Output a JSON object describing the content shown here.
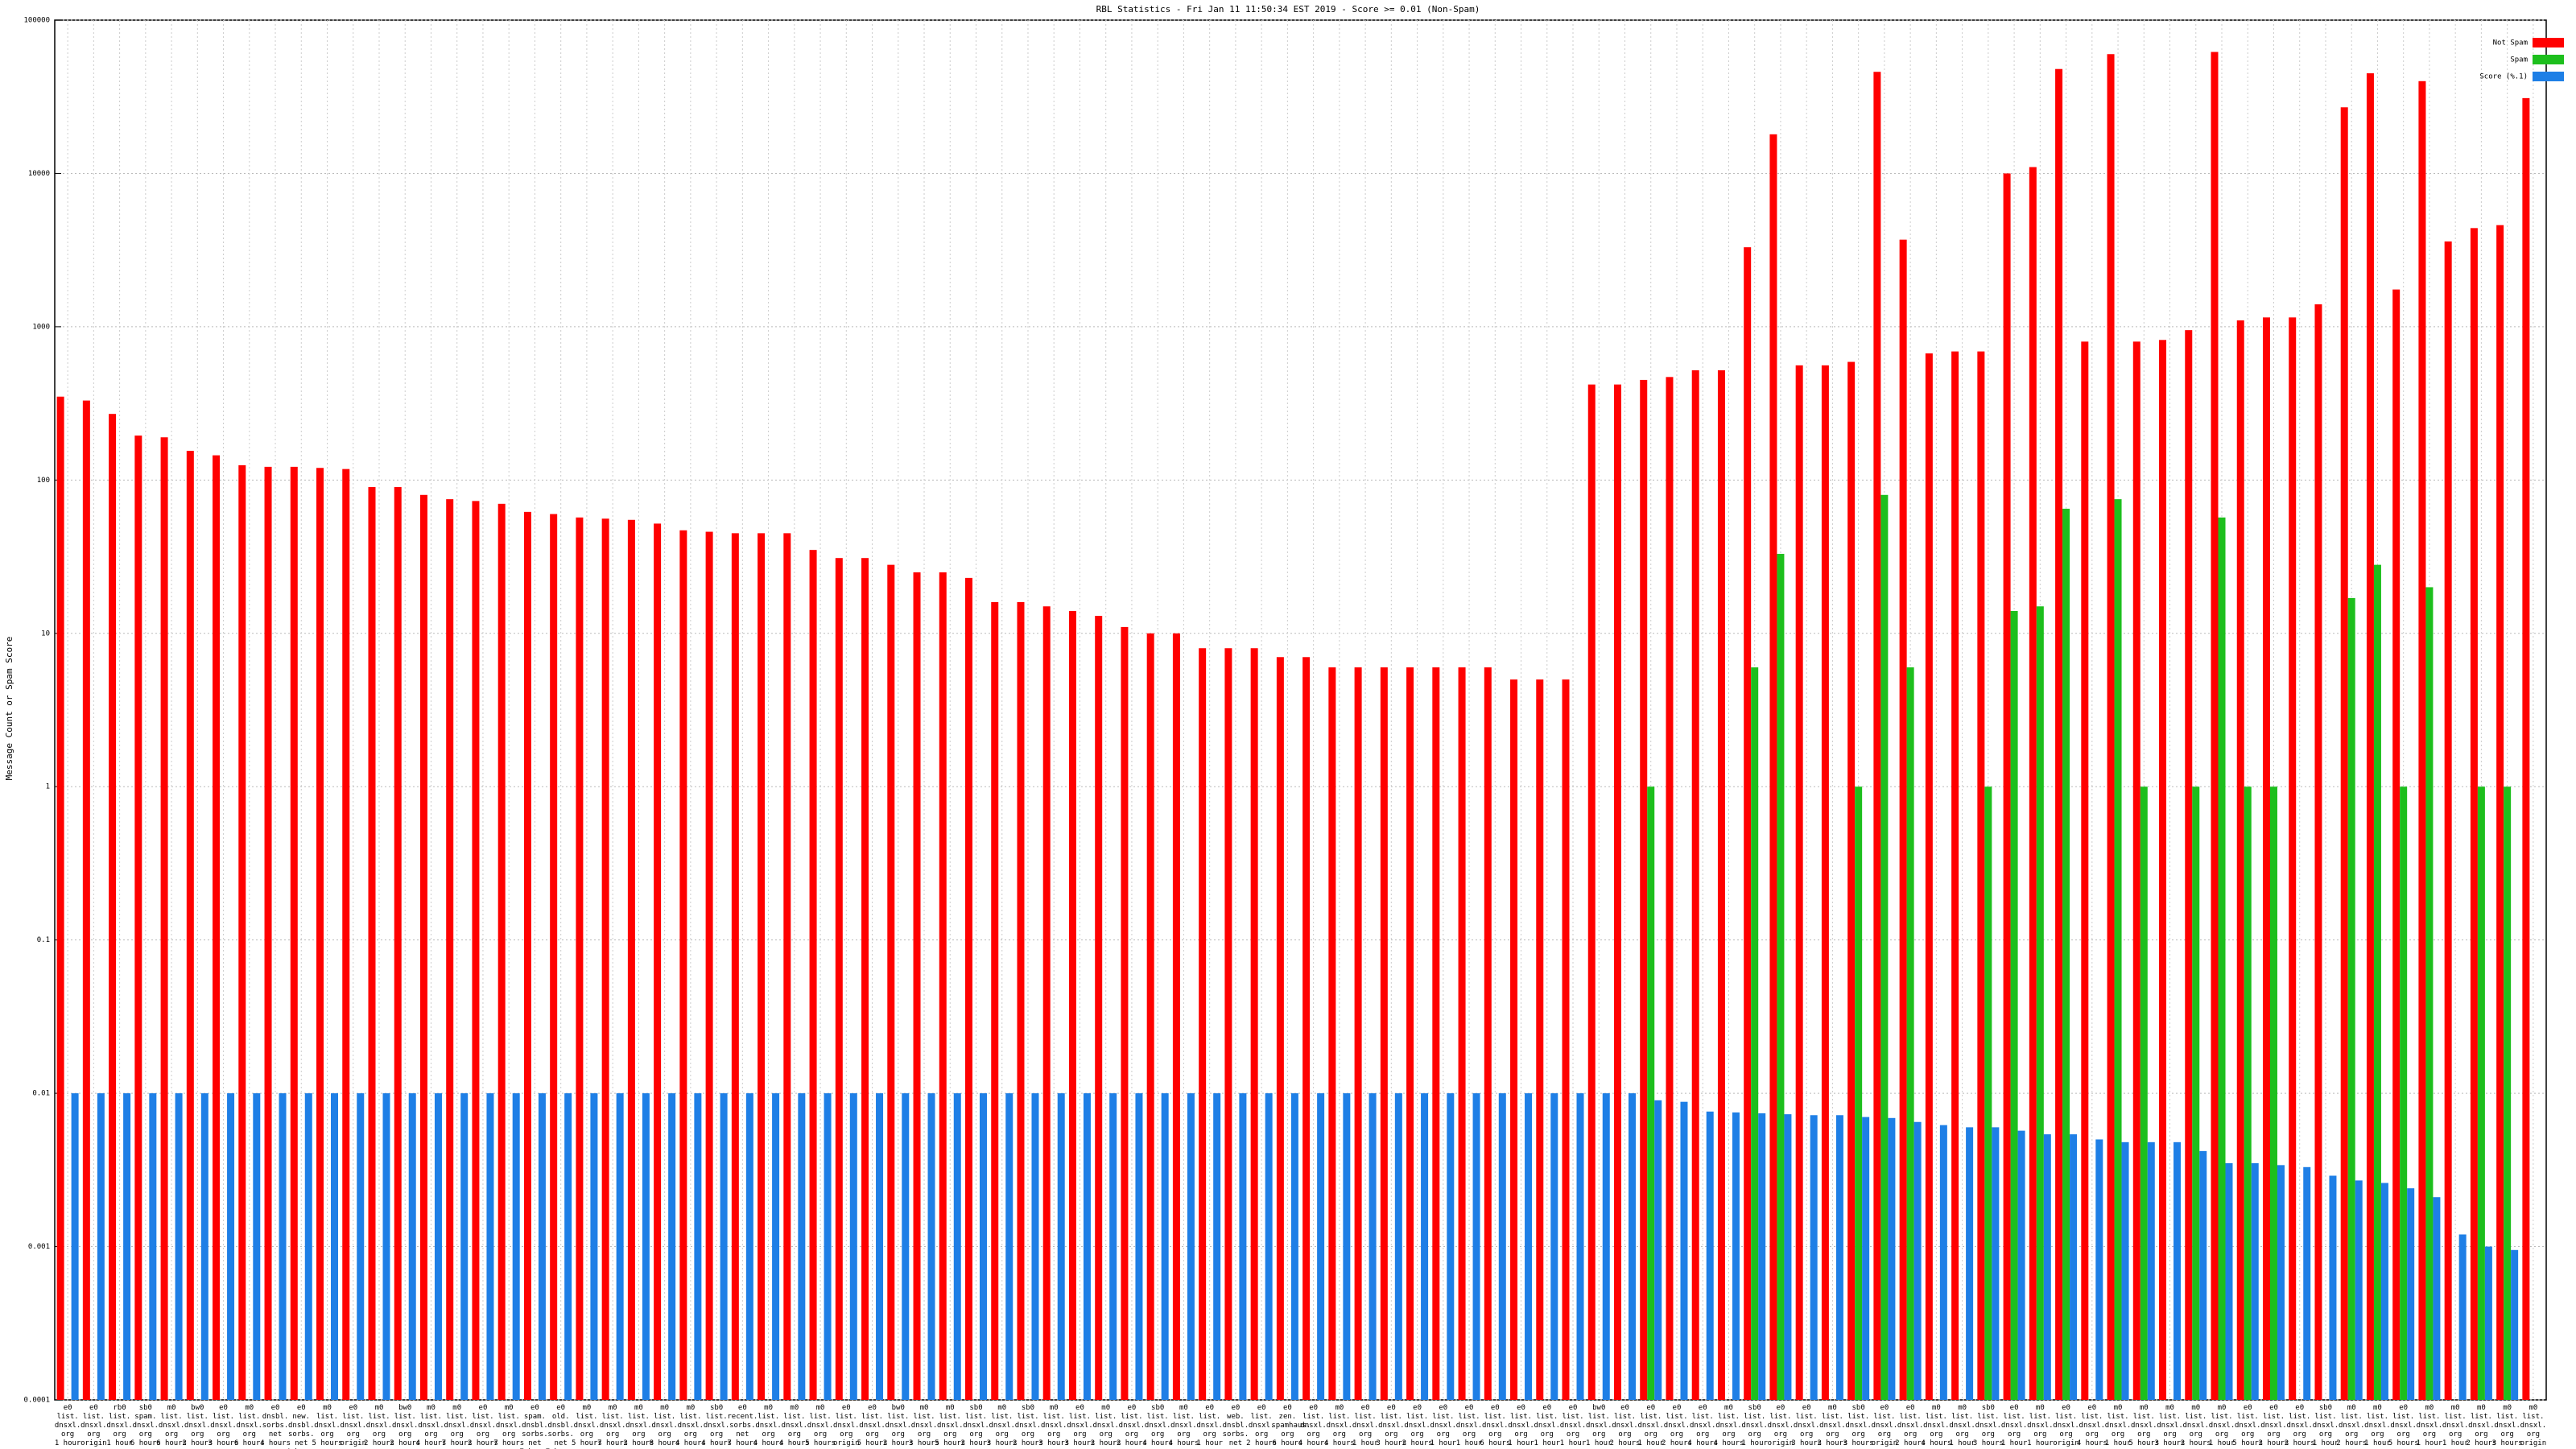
{
  "chart_data": {
    "type": "bar",
    "title": "RBL Statistics - Fri Jan 11 11:50:34 EST 2019 - Score >= 0.01 (Non-Spam)",
    "y_label": "Message Count or Spam Score",
    "log_scale": true,
    "grid": true,
    "legend": "top-right",
    "ylim": [
      0.0001,
      100000
    ],
    "yticks": [
      0.0001,
      0.001,
      0.01,
      0.1,
      1,
      10,
      100,
      1000,
      10000,
      100000
    ],
    "categories": [
      "e0\nlist.\ndnsxl.\norg\n1 hour",
      "e0\nlist.\ndnsxl.\norg\norigin",
      "rb0\nlist.\ndnsxl.\norg\n1 hour",
      "sb0\nspam.\ndnsxl.\norg\n6 hours",
      "m0\nlist.\ndnsxl.\norg\n6 hours",
      "bw0\nlist.\ndnsxl.\norg\n2 hours",
      "e0\nlist.\ndnsxl.\norg\n3 hours",
      "m0\nlist.\ndnsxl.\norg\n6 hours",
      "e0\ndnsbl.\nsorbs.\nnet\n4 hours",
      "e0\nnew.\ndnsbl.\nsorbs.\nnet\n4 hours",
      "m0\nlist.\ndnsxl.\norg\n5 hours",
      "e0\nlist.\ndnsxl.\norg\norigin",
      "m0\nlist.\ndnsxl.\norg\n2 hours",
      "bw0\nlist.\ndnsxl.\norg\n2 hours",
      "m0\nlist.\ndnsxl.\norg\n4 hours",
      "m0\nlist.\ndnsxl.\norg\n7 hours",
      "e0\nlist.\ndnsxl.\norg\n2 hours",
      "m0\nlist.\ndnsxl.\norg\n7 hours",
      "e0\nspam.\ndnsbl.\nsorbs.\nnet\n7 hours",
      "e0\nold.\ndnsbl.\nsorbs.\nnet\n7 hours",
      "m0\nlist.\ndnsxl.\norg\n5 hours",
      "m0\nlist.\ndnsxl.\norg\n7 hours",
      "m0\nlist.\ndnsxl.\norg\n2 hours",
      "m0\nlist.\ndnsxl.\norg\n8 hours",
      "m0\nlist.\ndnsxl.\norg\n4 hours",
      "sb0\nlist.\ndnsxl.\norg\n4 hours",
      "e0\nrecent.\nsorbs.\nnet\n7 hours",
      "m0\nlist.\ndnsxl.\norg\n4 hours",
      "m0\nlist.\ndnsxl.\norg\n4 hours",
      "m0\nlist.\ndnsxl.\norg\n5 hours",
      "e0\nlist.\ndnsxl.\norg\norigin",
      "e0\nlist.\ndnsxl.\norg\n5 hours",
      "bw0\nlist.\ndnsxl.\norg\n2 hours",
      "m0\nlist.\ndnsxl.\norg\n3 hours",
      "m0\nlist.\ndnsxl.\norg\n5 hours",
      "sb0\nlist.\ndnsxl.\norg\n2 hours",
      "m0\nlist.\ndnsxl.\norg\n3 hours",
      "sb0\nlist.\ndnsxl.\norg\n2 hours",
      "m0\nlist.\ndnsxl.\norg\n3 hours",
      "e0\nlist.\ndnsxl.\norg\n3 hours",
      "m0\nlist.\ndnsxl.\norg\n2 hours",
      "e0\nlist.\ndnsxl.\norg\n2 hours",
      "sb0\nlist.\ndnsxl.\norg\n4 hours",
      "m0\nlist.\ndnsxl.\norg\n4 hours",
      "e0\nlist.\ndnsxl.\norg\n1 hour",
      "e0\nweb.\ndnsbl.\nsorbs.\nnet",
      "e0\nlist.\ndnsxl.\norg\n2 hours",
      "e0\nzen.\nspamhaus.\norg\n6 hours",
      "e0\nlist.\ndnsxl.\norg\n4 hours",
      "m0\nlist.\ndnsxl.\norg\n4 hours",
      "e0\nlist.\ndnsxl.\norg\n1 hour",
      "e0\nlist.\ndnsxl.\norg\n3 hours",
      "e0\nlist.\ndnsxl.\norg\n2 hours",
      "e0\nlist.\ndnsxl.\norg\n1 hour",
      "e0\nlist.\ndnsxl.\norg\n1 hour",
      "e0\nlist.\ndnsxl.\norg\n6 hours",
      "e0\nlist.\ndnsxl.\norg\n1 hour",
      "e0\nlist.\ndnsxl.\norg\n1 hour",
      "e0\nlist.\ndnsxl.\norg\n1 hour",
      "bw0\nlist.\ndnsxl.\norg\n1 hour",
      "e0\nlist.\ndnsxl.\norg\n2 hours",
      "e0\nlist.\ndnsxl.\norg\n1 hour",
      "e0\nlist.\ndnsxl.\norg\n2 hours",
      "e0\nlist.\ndnsxl.\norg\n4 hours",
      "m0\nlist.\ndnsxl.\norg\n4 hours",
      "sb0\nlist.\ndnsxl.\norg\n1 hour",
      "e0\nlist.\ndnsxl.\norg\norigin",
      "e0\nlist.\ndnsxl.\norg\n3 hours",
      "m0\nlist.\ndnsxl.\norg\n2 hours",
      "sb0\nlist.\ndnsxl.\norg\n3 hours",
      "e0\nlist.\ndnsxl.\norg\norigin",
      "e0\nlist.\ndnsxl.\norg\n2 hours",
      "m0\nlist.\ndnsxl.\norg\n4 hours",
      "m0\nlist.\ndnsxl.\norg\n1 hour",
      "sb0\nlist.\ndnsxl.\norg\n3 hours",
      "e0\nlist.\ndnsxl.\norg\n1 hour",
      "m0\nlist.\ndnsxl.\norg\n1 hour",
      "e0\nlist.\ndnsxl.\norg\norigin",
      "e0\nlist.\ndnsxl.\norg\n4 hours",
      "m0\nlist.\ndnsxl.\norg\n1 hour",
      "m0\nlist.\ndnsxl.\norg\n5 hours",
      "m0\nlist.\ndnsxl.\norg\n3 hours",
      "m0\nlist.\ndnsxl.\norg\n2 hours",
      "m0\nlist.\ndnsxl.\norg\n1 hour",
      "e0\nlist.\ndnsxl.\norg\n5 hours",
      "e0\nlist.\ndnsxl.\norg\n2 hours",
      "e0\nlist.\ndnsxl.\norg\n2 hours",
      "sb0\nlist.\ndnsxl.\norg\n1 hour",
      "m0\nlist.\ndnsxl.\norg\n2 hours",
      "m0\nlist.\ndnsxl.\norg\n1 hour",
      "e0\nlist.\ndnsxl.\norg\n5 hours",
      "m0\nlist.\ndnsxl.\norg\n1 hour",
      "m0\nlist.\ndnsxl.\norg\n1 hour",
      "m0\nlist.\ndnsxl.\norg\n2 hours",
      "m0\nlist.\ndnsxl.\norg\n3 hours",
      "m0\nlist.\ndnsxl.\norg\norigin"
    ],
    "series": [
      {
        "name": "Not Spam",
        "color": "#ff0000",
        "values": [
          350,
          330,
          270,
          195,
          190,
          155,
          145,
          125,
          122,
          122,
          120,
          118,
          90,
          90,
          80,
          75,
          73,
          70,
          62,
          60,
          57,
          56,
          55,
          52,
          47,
          46,
          45,
          45,
          45,
          35,
          31,
          31,
          28,
          25,
          25,
          23,
          16,
          16,
          15,
          14,
          13,
          11,
          10,
          10,
          8,
          8,
          8,
          7,
          7,
          6,
          6,
          6,
          6,
          6,
          6,
          6,
          5,
          5,
          5,
          420,
          420,
          450,
          470,
          520,
          520,
          3300,
          18000,
          560,
          560,
          590,
          46000,
          3700,
          670,
          690,
          690,
          10000,
          11000,
          48000,
          800,
          60000,
          800,
          820,
          950,
          62000,
          1100,
          1150,
          1150,
          1400,
          27000,
          45000,
          1750,
          40000,
          3600,
          4400,
          4600,
          31000
        ]
      },
      {
        "name": "Spam",
        "color": "#1dbf1d",
        "values": [
          null,
          null,
          null,
          null,
          null,
          null,
          null,
          null,
          null,
          null,
          null,
          null,
          null,
          null,
          null,
          null,
          null,
          null,
          null,
          null,
          null,
          null,
          null,
          null,
          null,
          null,
          null,
          null,
          null,
          null,
          null,
          null,
          null,
          null,
          null,
          null,
          null,
          null,
          null,
          null,
          null,
          null,
          null,
          null,
          null,
          null,
          null,
          null,
          null,
          null,
          null,
          null,
          null,
          null,
          null,
          null,
          null,
          null,
          null,
          null,
          null,
          1,
          null,
          null,
          null,
          6,
          33,
          null,
          null,
          1,
          80,
          6,
          null,
          null,
          1,
          14,
          15,
          65,
          null,
          75,
          1,
          null,
          1,
          57,
          1,
          1,
          null,
          null,
          17,
          28,
          1,
          20,
          null,
          1,
          1,
          null
        ]
      },
      {
        "name": "Score (%.1)",
        "color": "#1e7fe6",
        "values": [
          0.01,
          0.01,
          0.01,
          0.01,
          0.01,
          0.01,
          0.01,
          0.01,
          0.01,
          0.01,
          0.01,
          0.01,
          0.01,
          0.01,
          0.01,
          0.01,
          0.01,
          0.01,
          0.01,
          0.01,
          0.01,
          0.01,
          0.01,
          0.01,
          0.01,
          0.01,
          0.01,
          0.01,
          0.01,
          0.01,
          0.01,
          0.01,
          0.01,
          0.01,
          0.01,
          0.01,
          0.01,
          0.01,
          0.01,
          0.01,
          0.01,
          0.01,
          0.01,
          0.01,
          0.01,
          0.01,
          0.01,
          0.01,
          0.01,
          0.01,
          0.01,
          0.01,
          0.01,
          0.01,
          0.01,
          0.01,
          0.01,
          0.01,
          0.01,
          0.01,
          0.01,
          0.009,
          0.0088,
          0.0076,
          0.0075,
          0.0074,
          0.0073,
          0.0072,
          0.0072,
          0.007,
          0.0069,
          0.0065,
          0.0062,
          0.006,
          0.006,
          0.0057,
          0.0054,
          0.0054,
          0.005,
          0.0048,
          0.0048,
          0.0048,
          0.0042,
          0.0035,
          0.0035,
          0.0034,
          0.0033,
          0.0029,
          0.0027,
          0.0026,
          0.0024,
          0.0021,
          0.0012,
          0.001,
          0.00095,
          null
        ]
      }
    ]
  }
}
